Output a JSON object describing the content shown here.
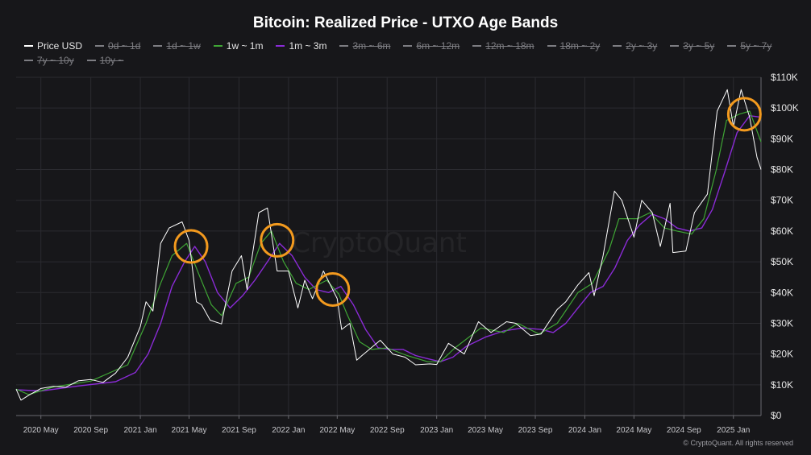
{
  "title": "Bitcoin: Realized Price - UTXO Age Bands",
  "watermark": "CryptoQuant",
  "copyright": "© CryptoQuant. All rights reserved",
  "colors": {
    "background": "#17171a",
    "grid": "#2b2b30",
    "price": "#ffffff",
    "band_1w_1m": "#3fa535",
    "band_1m_3m": "#8a2bd6",
    "highlight_circle": "#f39a1e"
  },
  "legend": [
    {
      "label": "Price USD",
      "color": "#ffffff",
      "active": true
    },
    {
      "label": "0d ~ 1d",
      "color": "#7d7d82",
      "active": false
    },
    {
      "label": "1d ~ 1w",
      "color": "#7d7d82",
      "active": false
    },
    {
      "label": "1w ~ 1m",
      "color": "#3fa535",
      "active": true
    },
    {
      "label": "1m ~ 3m",
      "color": "#8a2bd6",
      "active": true
    },
    {
      "label": "3m ~ 6m",
      "color": "#7d7d82",
      "active": false
    },
    {
      "label": "6m ~ 12m",
      "color": "#7d7d82",
      "active": false
    },
    {
      "label": "12m ~ 18m",
      "color": "#7d7d82",
      "active": false
    },
    {
      "label": "18m ~ 2y",
      "color": "#7d7d82",
      "active": false
    },
    {
      "label": "2y ~ 3y",
      "color": "#7d7d82",
      "active": false
    },
    {
      "label": "3y ~ 5y",
      "color": "#7d7d82",
      "active": false
    },
    {
      "label": "5y ~ 7y",
      "color": "#7d7d82",
      "active": false
    },
    {
      "label": "7y ~ 10y",
      "color": "#7d7d82",
      "active": false
    },
    {
      "label": "10y ~",
      "color": "#7d7d82",
      "active": false
    }
  ],
  "chart_data": {
    "type": "line",
    "title": "Bitcoin: Realized Price - UTXO Age Bands",
    "x_tick_labels": [
      "2020 May",
      "2020 Sep",
      "2021 Jan",
      "2021 May",
      "2021 Sep",
      "2022 Jan",
      "2022 May",
      "2022 Sep",
      "2023 Jan",
      "2023 May",
      "2023 Sep",
      "2024 Jan",
      "2024 May",
      "2024 Sep",
      "2025 Jan"
    ],
    "y_tick_labels": [
      "$0",
      "$10K",
      "$20K",
      "$30K",
      "$40K",
      "$50K",
      "$60K",
      "$70K",
      "$80K",
      "$90K",
      "$100K",
      "$110K"
    ],
    "ylim": [
      0,
      110000
    ],
    "xlim": [
      "2020-03-01",
      "2025-03-10"
    ],
    "grid": true,
    "legend_position": "top",
    "series": [
      {
        "name": "Price USD",
        "points": [
          [
            "2020-03-01",
            8600
          ],
          [
            "2020-03-13",
            5000
          ],
          [
            "2020-04-01",
            6600
          ],
          [
            "2020-05-01",
            8800
          ],
          [
            "2020-06-01",
            9500
          ],
          [
            "2020-07-01",
            9200
          ],
          [
            "2020-08-01",
            11300
          ],
          [
            "2020-09-01",
            11700
          ],
          [
            "2020-10-01",
            10800
          ],
          [
            "2020-11-01",
            13800
          ],
          [
            "2020-12-01",
            19000
          ],
          [
            "2021-01-01",
            29000
          ],
          [
            "2021-01-15",
            37000
          ],
          [
            "2021-02-01",
            34000
          ],
          [
            "2021-02-20",
            56000
          ],
          [
            "2021-03-13",
            61000
          ],
          [
            "2021-04-14",
            63000
          ],
          [
            "2021-05-01",
            57000
          ],
          [
            "2021-05-19",
            37000
          ],
          [
            "2021-06-01",
            36000
          ],
          [
            "2021-06-22",
            31000
          ],
          [
            "2021-07-20",
            29800
          ],
          [
            "2021-08-15",
            47000
          ],
          [
            "2021-09-07",
            52000
          ],
          [
            "2021-09-21",
            41000
          ],
          [
            "2021-10-20",
            66000
          ],
          [
            "2021-11-10",
            67500
          ],
          [
            "2021-12-04",
            47000
          ],
          [
            "2022-01-01",
            47000
          ],
          [
            "2022-01-24",
            35000
          ],
          [
            "2022-02-10",
            44000
          ],
          [
            "2022-03-01",
            38000
          ],
          [
            "2022-03-28",
            47000
          ],
          [
            "2022-05-01",
            38000
          ],
          [
            "2022-05-12",
            28000
          ],
          [
            "2022-06-01",
            30000
          ],
          [
            "2022-06-18",
            18000
          ],
          [
            "2022-07-01",
            19500
          ],
          [
            "2022-08-15",
            24500
          ],
          [
            "2022-09-15",
            20000
          ],
          [
            "2022-10-15",
            19000
          ],
          [
            "2022-11-10",
            16500
          ],
          [
            "2022-12-15",
            16800
          ],
          [
            "2023-01-01",
            16600
          ],
          [
            "2023-01-30",
            23500
          ],
          [
            "2023-03-10",
            20000
          ],
          [
            "2023-04-14",
            30500
          ],
          [
            "2023-05-15",
            27000
          ],
          [
            "2023-06-22",
            30500
          ],
          [
            "2023-07-15",
            30000
          ],
          [
            "2023-08-20",
            26000
          ],
          [
            "2023-09-15",
            26500
          ],
          [
            "2023-10-25",
            34500
          ],
          [
            "2023-11-15",
            37000
          ],
          [
            "2023-12-15",
            42500
          ],
          [
            "2024-01-11",
            46500
          ],
          [
            "2024-01-24",
            39000
          ],
          [
            "2024-02-15",
            52000
          ],
          [
            "2024-03-14",
            73000
          ],
          [
            "2024-04-01",
            70000
          ],
          [
            "2024-05-01",
            58000
          ],
          [
            "2024-05-20",
            70000
          ],
          [
            "2024-06-15",
            66000
          ],
          [
            "2024-07-05",
            55000
          ],
          [
            "2024-07-29",
            69000
          ],
          [
            "2024-08-05",
            53000
          ],
          [
            "2024-09-06",
            53500
          ],
          [
            "2024-09-27",
            66000
          ],
          [
            "2024-10-29",
            72000
          ],
          [
            "2024-11-12",
            88000
          ],
          [
            "2024-11-22",
            99000
          ],
          [
            "2024-12-17",
            106000
          ],
          [
            "2025-01-01",
            94000
          ],
          [
            "2025-01-20",
            106000
          ],
          [
            "2025-02-10",
            97000
          ],
          [
            "2025-02-28",
            84000
          ],
          [
            "2025-03-10",
            80000
          ]
        ]
      },
      {
        "name": "1w ~ 1m",
        "points": [
          [
            "2020-03-01",
            8600
          ],
          [
            "2020-04-01",
            6800
          ],
          [
            "2020-06-01",
            9300
          ],
          [
            "2020-09-01",
            11200
          ],
          [
            "2020-12-01",
            16500
          ],
          [
            "2021-01-15",
            30000
          ],
          [
            "2021-02-20",
            43000
          ],
          [
            "2021-03-20",
            52000
          ],
          [
            "2021-04-25",
            56000
          ],
          [
            "2021-05-25",
            46000
          ],
          [
            "2021-06-25",
            36000
          ],
          [
            "2021-07-20",
            32500
          ],
          [
            "2021-08-25",
            43000
          ],
          [
            "2021-09-25",
            45000
          ],
          [
            "2021-10-25",
            56000
          ],
          [
            "2021-11-20",
            60000
          ],
          [
            "2021-12-20",
            50000
          ],
          [
            "2022-01-20",
            43000
          ],
          [
            "2022-02-20",
            41000
          ],
          [
            "2022-04-05",
            44000
          ],
          [
            "2022-05-05",
            39500
          ],
          [
            "2022-05-25",
            33000
          ],
          [
            "2022-06-25",
            24000
          ],
          [
            "2022-07-25",
            21500
          ],
          [
            "2022-09-01",
            22000
          ],
          [
            "2022-10-20",
            19500
          ],
          [
            "2022-12-10",
            17500
          ],
          [
            "2023-01-10",
            17500
          ],
          [
            "2023-02-15",
            22000
          ],
          [
            "2023-04-20",
            28500
          ],
          [
            "2023-06-15",
            27000
          ],
          [
            "2023-07-20",
            30000
          ],
          [
            "2023-09-10",
            26500
          ],
          [
            "2023-10-25",
            30000
          ],
          [
            "2023-12-15",
            40000
          ],
          [
            "2024-01-20",
            43000
          ],
          [
            "2024-03-01",
            54000
          ],
          [
            "2024-03-25",
            64000
          ],
          [
            "2024-05-10",
            64000
          ],
          [
            "2024-06-10",
            66000
          ],
          [
            "2024-07-15",
            61000
          ],
          [
            "2024-08-15",
            60000
          ],
          [
            "2024-09-20",
            59000
          ],
          [
            "2024-10-20",
            64000
          ],
          [
            "2024-11-20",
            80000
          ],
          [
            "2024-12-15",
            96000
          ],
          [
            "2025-01-15",
            98000
          ],
          [
            "2025-02-10",
            99000
          ],
          [
            "2025-03-10",
            89000
          ]
        ]
      },
      {
        "name": "1m ~ 3m",
        "points": [
          [
            "2020-03-01",
            8400
          ],
          [
            "2020-05-01",
            8000
          ],
          [
            "2020-08-01",
            9600
          ],
          [
            "2020-11-01",
            11000
          ],
          [
            "2020-12-20",
            14000
          ],
          [
            "2021-01-20",
            20000
          ],
          [
            "2021-02-20",
            30000
          ],
          [
            "2021-03-20",
            42000
          ],
          [
            "2021-04-20",
            50000
          ],
          [
            "2021-05-15",
            55000
          ],
          [
            "2021-06-10",
            50000
          ],
          [
            "2021-07-10",
            40000
          ],
          [
            "2021-08-10",
            35000
          ],
          [
            "2021-09-10",
            39000
          ],
          [
            "2021-10-10",
            44000
          ],
          [
            "2021-11-10",
            50000
          ],
          [
            "2021-12-10",
            56000
          ],
          [
            "2022-01-10",
            52000
          ],
          [
            "2022-02-10",
            45000
          ],
          [
            "2022-03-10",
            41000
          ],
          [
            "2022-04-10",
            40000
          ],
          [
            "2022-05-10",
            42000
          ],
          [
            "2022-06-10",
            36000
          ],
          [
            "2022-07-10",
            28000
          ],
          [
            "2022-08-10",
            22000
          ],
          [
            "2022-09-10",
            21500
          ],
          [
            "2022-10-10",
            21500
          ],
          [
            "2022-11-10",
            19500
          ],
          [
            "2022-12-10",
            18500
          ],
          [
            "2023-01-10",
            17500
          ],
          [
            "2023-02-10",
            19000
          ],
          [
            "2023-03-15",
            22500
          ],
          [
            "2023-05-01",
            25500
          ],
          [
            "2023-06-15",
            27500
          ],
          [
            "2023-08-01",
            28500
          ],
          [
            "2023-09-15",
            28000
          ],
          [
            "2023-10-15",
            27000
          ],
          [
            "2023-11-15",
            30000
          ],
          [
            "2023-12-15",
            35000
          ],
          [
            "2024-01-15",
            40000
          ],
          [
            "2024-02-15",
            42000
          ],
          [
            "2024-03-15",
            48000
          ],
          [
            "2024-04-15",
            57000
          ],
          [
            "2024-05-15",
            62000
          ],
          [
            "2024-06-15",
            65500
          ],
          [
            "2024-07-15",
            64000
          ],
          [
            "2024-08-15",
            61000
          ],
          [
            "2024-09-15",
            60000
          ],
          [
            "2024-10-15",
            61000
          ],
          [
            "2024-11-10",
            67000
          ],
          [
            "2024-12-10",
            79000
          ],
          [
            "2025-01-10",
            92000
          ],
          [
            "2025-02-10",
            97500
          ],
          [
            "2025-03-10",
            97000
          ]
        ]
      }
    ],
    "highlights": [
      {
        "date": "2021-05-06",
        "value": 55000
      },
      {
        "date": "2021-12-04",
        "value": 57000
      },
      {
        "date": "2022-04-20",
        "value": 41000
      },
      {
        "date": "2025-01-28",
        "value": 98000
      }
    ]
  }
}
